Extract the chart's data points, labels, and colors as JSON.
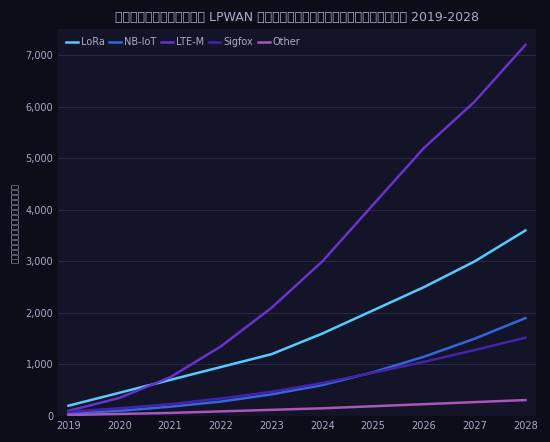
{
  "title": "การเชื่อมต่อ LPWAN ด้วยเทคโนโลยีทั่วโลก 2019-2028",
  "years": [
    2019,
    2020,
    2021,
    2022,
    2023,
    2024,
    2025,
    2026,
    2027,
    2028
  ],
  "series": [
    {
      "label": "LoRa",
      "color": "#55CCFF",
      "values": [
        200,
        450,
        700,
        950,
        1200,
        1600,
        2050,
        2500,
        3000,
        3600
      ]
    },
    {
      "label": "NB-IoT",
      "color": "#3366DD",
      "values": [
        50,
        100,
        180,
        280,
        420,
        600,
        850,
        1150,
        1500,
        1900
      ]
    },
    {
      "label": "LTE-M",
      "color": "#6633CC",
      "values": [
        100,
        350,
        750,
        1350,
        2100,
        3000,
        4100,
        5200,
        6100,
        7200
      ]
    },
    {
      "label": "Sigfox",
      "color": "#4422AA",
      "values": [
        80,
        150,
        230,
        340,
        470,
        640,
        840,
        1050,
        1280,
        1520
      ]
    },
    {
      "label": "Other",
      "color": "#AA55BB",
      "values": [
        20,
        40,
        60,
        90,
        120,
        150,
        190,
        230,
        270,
        310
      ]
    }
  ],
  "ylabel": "ล้านการเชื่อมต่อ",
  "ylim": [
    0,
    7500
  ],
  "ytick_values": [
    0,
    1000,
    2000,
    3000,
    4000,
    5000,
    6000,
    7000
  ],
  "ytick_labels": [
    "0",
    "1,000",
    "2,000",
    "3,000",
    "4,000",
    "5,000",
    "6,000",
    "7,000"
  ],
  "background_color": "#0d0d1a",
  "plot_background": "#141428",
  "grid_color": "#2a2a45",
  "grid_linewidth": 0.7,
  "text_color": "#aaaacc",
  "title_fontsize": 9,
  "tick_fontsize": 7,
  "legend_fontsize": 7,
  "line_linewidth": 1.8
}
